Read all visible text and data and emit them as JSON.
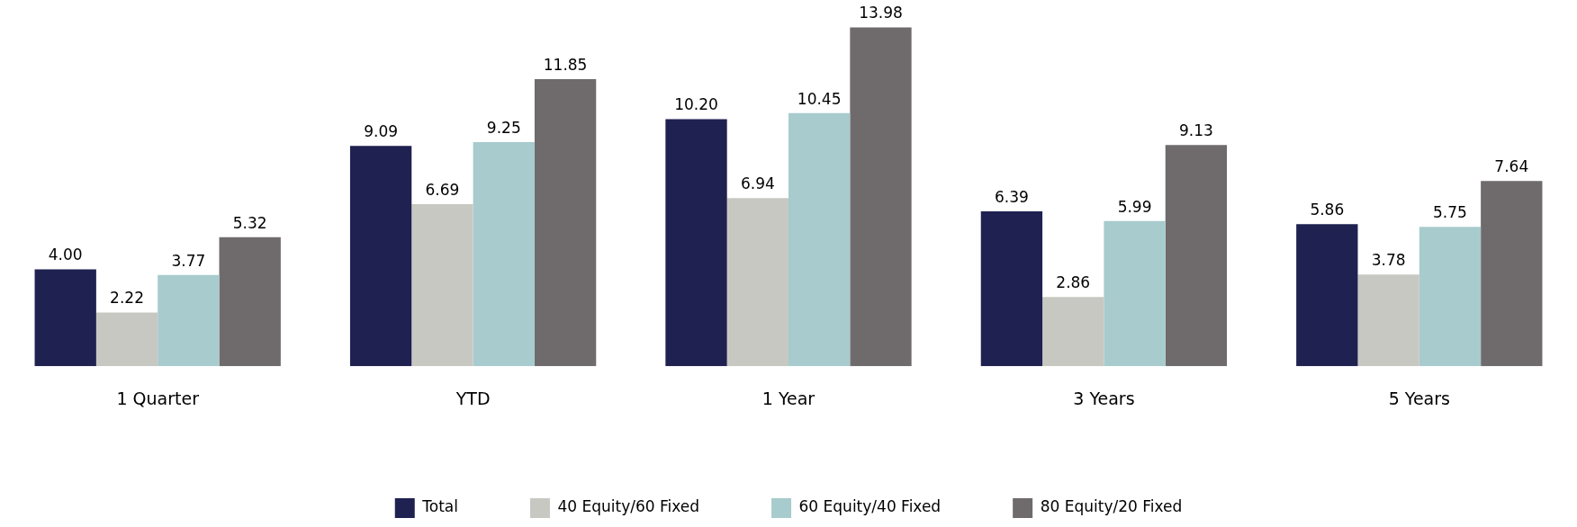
{
  "chart_data": {
    "type": "bar",
    "categories": [
      "1 Quarter",
      "YTD",
      "1 Year",
      "3 Years",
      "5 Years"
    ],
    "series": [
      {
        "name": "Total",
        "color": "#1f2151",
        "values": [
          4.0,
          9.09,
          10.2,
          6.39,
          5.86
        ],
        "value_labels": [
          "4.00",
          "9.09",
          "10.20",
          "6.39",
          "5.86"
        ]
      },
      {
        "name": "40 Equity/60 Fixed",
        "color": "#c8c8c3",
        "values": [
          2.22,
          6.69,
          6.94,
          2.86,
          3.78
        ],
        "value_labels": [
          "2.22",
          "6.69",
          "6.94",
          "2.86",
          "3.78"
        ]
      },
      {
        "name": "60 Equity/40 Fixed",
        "color": "#a8cbcd",
        "values": [
          3.77,
          9.25,
          10.45,
          5.99,
          5.75
        ],
        "value_labels": [
          "3.77",
          "9.25",
          "10.45",
          "5.99",
          "5.75"
        ]
      },
      {
        "name": "80 Equity/20 Fixed",
        "color": "#6f6b6c",
        "values": [
          5.32,
          11.85,
          13.98,
          9.13,
          7.64
        ],
        "value_labels": [
          "5.32",
          "11.85",
          "13.98",
          "9.13",
          "7.64"
        ]
      }
    ],
    "legend": "bottom"
  }
}
